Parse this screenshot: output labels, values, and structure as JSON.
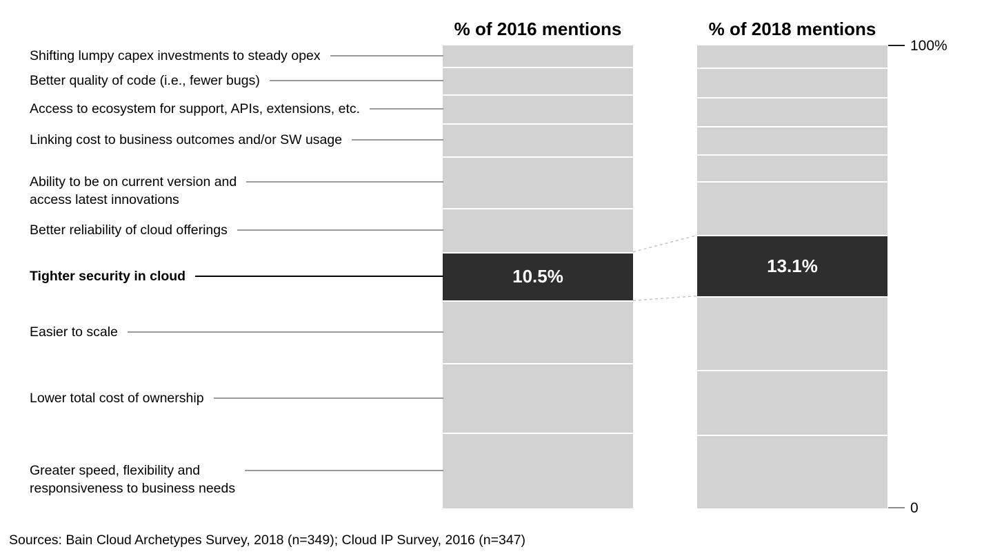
{
  "axis": {
    "top_label": "100%",
    "bottom_label": "0"
  },
  "source": "Sources: Bain Cloud Archetypes Survey, 2018 (n=349); Cloud IP Survey, 2016 (n=347)",
  "colors": {
    "segment_gray": "#d2d2d2",
    "segment_dark": "#2e2e2e",
    "divider_white": "#ffffff",
    "value_text": "#ffffff",
    "dashed_connector": "#c4c4c4"
  },
  "chart_data": {
    "type": "bar",
    "subtype": "100%-stacked-column-pair",
    "title": "",
    "categories": [
      "Shifting lumpy capex investments to steady opex",
      "Better quality of code (i.e., fewer bugs)",
      "Access to ecosystem for support, APIs, extensions, etc.",
      "Linking cost to business outcomes and/or SW usage",
      "Ability to be on current version and\naccess latest innovations",
      "Better reliability of cloud offerings",
      "Tighter security in cloud",
      "Easier to scale",
      "Lower total cost of ownership",
      "Greater speed, flexibility and\nresponsiveness to business needs"
    ],
    "highlight_index": 6,
    "highlight_category": "Tighter security in cloud",
    "series": [
      {
        "name": "% of 2016 mentions",
        "values": [
          4.6,
          6.0,
          6.2,
          7.1,
          11.2,
          9.5,
          10.5,
          13.5,
          15.1,
          16.3
        ],
        "labeled_value": "10.5%"
      },
      {
        "name": "% of 2018 mentions",
        "values": [
          4.7,
          6.4,
          6.3,
          6.1,
          5.8,
          11.7,
          13.1,
          16.0,
          14.0,
          15.9
        ],
        "labeled_value": "13.1%"
      }
    ],
    "value_labels_shown_only_for_highlight": true,
    "ylim": [
      0,
      100
    ],
    "grid": false,
    "legend": false,
    "axis_tick_labels": [
      "100%",
      "0"
    ]
  }
}
